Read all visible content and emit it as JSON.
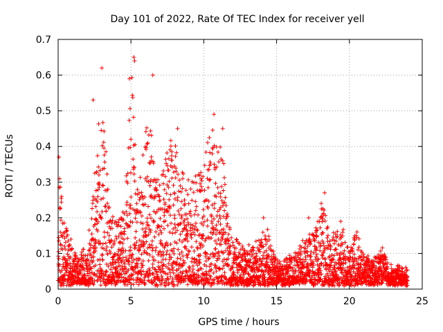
{
  "chart_data": {
    "type": "scatter",
    "title": "Day 101 of 2022, Rate Of TEC Index for receiver yell",
    "xlabel": "GPS time / hours",
    "ylabel": "ROTI / TECUs",
    "xlim": [
      0,
      25
    ],
    "ylim": [
      0,
      0.7
    ],
    "x_ticks": [
      0,
      5,
      10,
      15,
      20,
      25
    ],
    "x_tick_labels": [
      "0",
      "5",
      "10",
      "15",
      "20",
      "25"
    ],
    "y_ticks": [
      0,
      0.1,
      0.2,
      0.3,
      0.4,
      0.5,
      0.6,
      0.7
    ],
    "y_tick_labels": [
      "0",
      "0.1",
      "0.2",
      "0.3",
      "0.4",
      "0.5",
      "0.6",
      "0.7"
    ],
    "grid": true,
    "marker": "plus",
    "series": [
      {
        "name": "ROTI",
        "color": "#ff0000",
        "envelope": {
          "x": [
            0,
            0.1,
            0.2,
            0.5,
            1.0,
            1.5,
            2.0,
            2.4,
            2.8,
            3.0,
            3.2,
            3.5,
            4.0,
            4.5,
            4.9,
            5.1,
            5.3,
            5.6,
            6.0,
            6.3,
            6.5,
            7.0,
            7.5,
            7.9,
            8.3,
            8.8,
            9.3,
            10.0,
            10.5,
            10.8,
            11.2,
            11.6,
            12.0,
            13.0,
            13.8,
            14.3,
            15.0,
            16.0,
            17.0,
            17.5,
            18.2,
            18.6,
            19.0,
            19.5,
            20.0,
            20.5,
            21.0,
            21.5,
            22.0,
            22.3,
            22.7,
            23.0,
            23.5,
            24.0
          ],
          "y": [
            0.12,
            0.35,
            0.28,
            0.2,
            0.12,
            0.1,
            0.13,
            0.28,
            0.5,
            0.58,
            0.45,
            0.26,
            0.2,
            0.22,
            0.52,
            0.62,
            0.4,
            0.3,
            0.45,
            0.52,
            0.38,
            0.3,
            0.4,
            0.45,
            0.36,
            0.3,
            0.32,
            0.35,
            0.48,
            0.4,
            0.45,
            0.22,
            0.14,
            0.12,
            0.14,
            0.18,
            0.08,
            0.1,
            0.14,
            0.16,
            0.26,
            0.15,
            0.16,
            0.19,
            0.12,
            0.16,
            0.1,
            0.09,
            0.1,
            0.13,
            0.07,
            0.06,
            0.07,
            0.06
          ],
          "baseline": 0.02
        },
        "highlights": [
          {
            "x": 3.0,
            "y": 0.62
          },
          {
            "x": 5.2,
            "y": 0.65
          },
          {
            "x": 5.25,
            "y": 0.64
          },
          {
            "x": 6.5,
            "y": 0.6
          },
          {
            "x": 4.9,
            "y": 0.59
          },
          {
            "x": 10.7,
            "y": 0.49
          },
          {
            "x": 11.3,
            "y": 0.45
          },
          {
            "x": 8.2,
            "y": 0.45
          },
          {
            "x": 2.4,
            "y": 0.53
          },
          {
            "x": 18.3,
            "y": 0.27
          },
          {
            "x": 17.2,
            "y": 0.2
          },
          {
            "x": 14.1,
            "y": 0.2
          },
          {
            "x": 19.4,
            "y": 0.19
          },
          {
            "x": 0.05,
            "y": 0.37
          }
        ],
        "points_per_hour": 140
      }
    ]
  }
}
